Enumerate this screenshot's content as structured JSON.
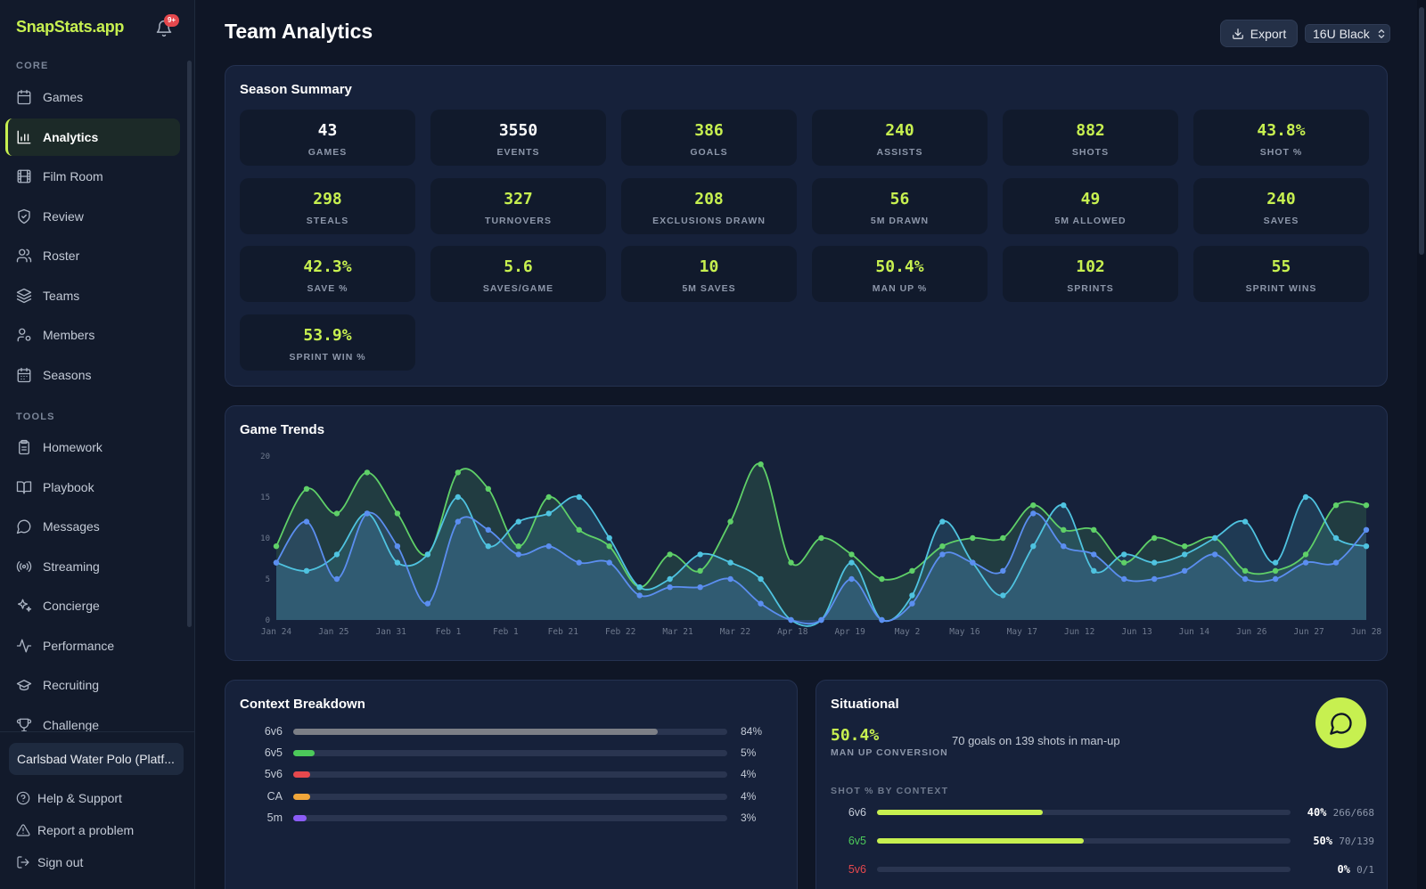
{
  "app": {
    "brand": "SnapStats.app",
    "notification_badge": "9+"
  },
  "sidebar": {
    "core_label": "CORE",
    "tools_label": "TOOLS",
    "core_items": [
      {
        "label": "Games",
        "icon": "calendar-icon"
      },
      {
        "label": "Analytics",
        "icon": "bar-chart-icon",
        "active": true
      },
      {
        "label": "Film Room",
        "icon": "film-icon"
      },
      {
        "label": "Review",
        "icon": "shield-check-icon"
      },
      {
        "label": "Roster",
        "icon": "users-icon"
      },
      {
        "label": "Teams",
        "icon": "layers-icon"
      },
      {
        "label": "Members",
        "icon": "user-cog-icon"
      },
      {
        "label": "Seasons",
        "icon": "calendar-days-icon"
      }
    ],
    "tool_items": [
      {
        "label": "Homework",
        "icon": "clipboard-icon"
      },
      {
        "label": "Playbook",
        "icon": "book-open-icon"
      },
      {
        "label": "Messages",
        "icon": "message-circle-icon"
      },
      {
        "label": "Streaming",
        "icon": "radio-icon"
      },
      {
        "label": "Concierge",
        "icon": "sparkles-icon"
      },
      {
        "label": "Performance",
        "icon": "activity-icon"
      },
      {
        "label": "Recruiting",
        "icon": "graduation-cap-icon"
      },
      {
        "label": "Challenge",
        "icon": "trophy-icon"
      }
    ],
    "org": "Carlsbad Water Polo (Platf...",
    "footer": [
      {
        "label": "Help & Support",
        "icon": "help-circle-icon"
      },
      {
        "label": "Report a problem",
        "icon": "alert-triangle-icon"
      },
      {
        "label": "Sign out",
        "icon": "log-out-icon"
      }
    ]
  },
  "header": {
    "title": "Team Analytics",
    "export_label": "Export",
    "team_selected": "16U Black"
  },
  "season_summary": {
    "title": "Season Summary",
    "stats": [
      {
        "value": "43",
        "label": "GAMES",
        "color": "white"
      },
      {
        "value": "3550",
        "label": "EVENTS",
        "color": "white"
      },
      {
        "value": "386",
        "label": "GOALS",
        "color": "lime"
      },
      {
        "value": "240",
        "label": "ASSISTS",
        "color": "lime"
      },
      {
        "value": "882",
        "label": "SHOTS",
        "color": "lime"
      },
      {
        "value": "43.8%",
        "label": "SHOT %",
        "color": "lime"
      },
      {
        "value": "298",
        "label": "STEALS",
        "color": "lime"
      },
      {
        "value": "327",
        "label": "TURNOVERS",
        "color": "lime"
      },
      {
        "value": "208",
        "label": "EXCLUSIONS DRAWN",
        "color": "lime"
      },
      {
        "value": "56",
        "label": "5M DRAWN",
        "color": "lime"
      },
      {
        "value": "49",
        "label": "5M ALLOWED",
        "color": "lime"
      },
      {
        "value": "240",
        "label": "SAVES",
        "color": "lime"
      },
      {
        "value": "42.3%",
        "label": "SAVE %",
        "color": "lime"
      },
      {
        "value": "5.6",
        "label": "SAVES/GAME",
        "color": "lime"
      },
      {
        "value": "10",
        "label": "5M SAVES",
        "color": "lime"
      },
      {
        "value": "50.4%",
        "label": "MAN UP %",
        "color": "lime"
      },
      {
        "value": "102",
        "label": "SPRINTS",
        "color": "lime"
      },
      {
        "value": "55",
        "label": "SPRINT WINS",
        "color": "lime"
      },
      {
        "value": "53.9%",
        "label": "SPRINT WIN %",
        "color": "lime"
      }
    ]
  },
  "game_trends": {
    "title": "Game Trends",
    "chart_data": {
      "type": "area",
      "ylim": [
        0,
        20
      ],
      "yticks": [
        0,
        5,
        10,
        15,
        20
      ],
      "xtick_labels": [
        "Jan 24",
        "Jan 25",
        "Jan 31",
        "Feb 1",
        "Feb 1",
        "Feb 21",
        "Feb 22",
        "Mar 21",
        "Mar 22",
        "Apr 18",
        "Apr 19",
        "May 2",
        "May 16",
        "May 17",
        "Jun 12",
        "Jun 13",
        "Jun 14",
        "Jun 26",
        "Jun 27",
        "Jun 28"
      ],
      "series": [
        {
          "color": "#5fd068",
          "values": [
            9,
            16,
            13,
            18,
            13,
            8,
            18,
            16,
            9,
            15,
            11,
            9,
            4,
            8,
            6,
            12,
            19,
            7,
            10,
            8,
            5,
            6,
            9,
            10,
            10,
            14,
            11,
            11,
            7,
            10,
            9,
            10,
            6,
            6,
            8,
            14,
            14
          ]
        },
        {
          "color": "#4fc3e0",
          "values": [
            7,
            6,
            8,
            13,
            7,
            8,
            15,
            9,
            12,
            13,
            15,
            10,
            4,
            5,
            8,
            7,
            5,
            0,
            0,
            7,
            0,
            3,
            12,
            7,
            3,
            9,
            14,
            6,
            8,
            7,
            8,
            10,
            12,
            7,
            15,
            10,
            9
          ]
        },
        {
          "color": "#5b8ef0",
          "values": [
            7,
            12,
            5,
            13,
            9,
            2,
            12,
            11,
            8,
            9,
            7,
            7,
            3,
            4,
            4,
            5,
            2,
            0,
            0,
            5,
            0,
            2,
            8,
            7,
            6,
            13,
            9,
            8,
            5,
            5,
            6,
            8,
            5,
            5,
            7,
            7,
            11
          ]
        }
      ]
    }
  },
  "context_breakdown": {
    "title": "Context Breakdown",
    "rows": [
      {
        "label": "6v6",
        "pct_text": "84%",
        "value": 84,
        "color": "#7c7f86"
      },
      {
        "label": "6v5",
        "pct_text": "5%",
        "value": 5,
        "color": "#4cc95a"
      },
      {
        "label": "5v6",
        "pct_text": "4%",
        "value": 4,
        "color": "#e5484d"
      },
      {
        "label": "CA",
        "pct_text": "4%",
        "value": 4,
        "color": "#f0a63a"
      },
      {
        "label": "5m",
        "pct_text": "3%",
        "value": 3,
        "color": "#8b5cf6"
      }
    ]
  },
  "situational": {
    "title": "Situational",
    "man_up_value": "50.4%",
    "man_up_label": "MAN UP CONVERSION",
    "man_up_detail": "70 goals on 139 shots in man-up",
    "shot_pct_label": "SHOT % BY CONTEXT",
    "rows": [
      {
        "label": "6v6",
        "pct": "40%",
        "count": "266/668",
        "value": 40,
        "label_color": "#c3cad6"
      },
      {
        "label": "6v5",
        "pct": "50%",
        "count": "70/139",
        "value": 50,
        "label_color": "#4cc95a"
      },
      {
        "label": "5v6",
        "pct": "0%",
        "count": "0/1",
        "value": 0,
        "label_color": "#e5484d"
      }
    ]
  }
}
